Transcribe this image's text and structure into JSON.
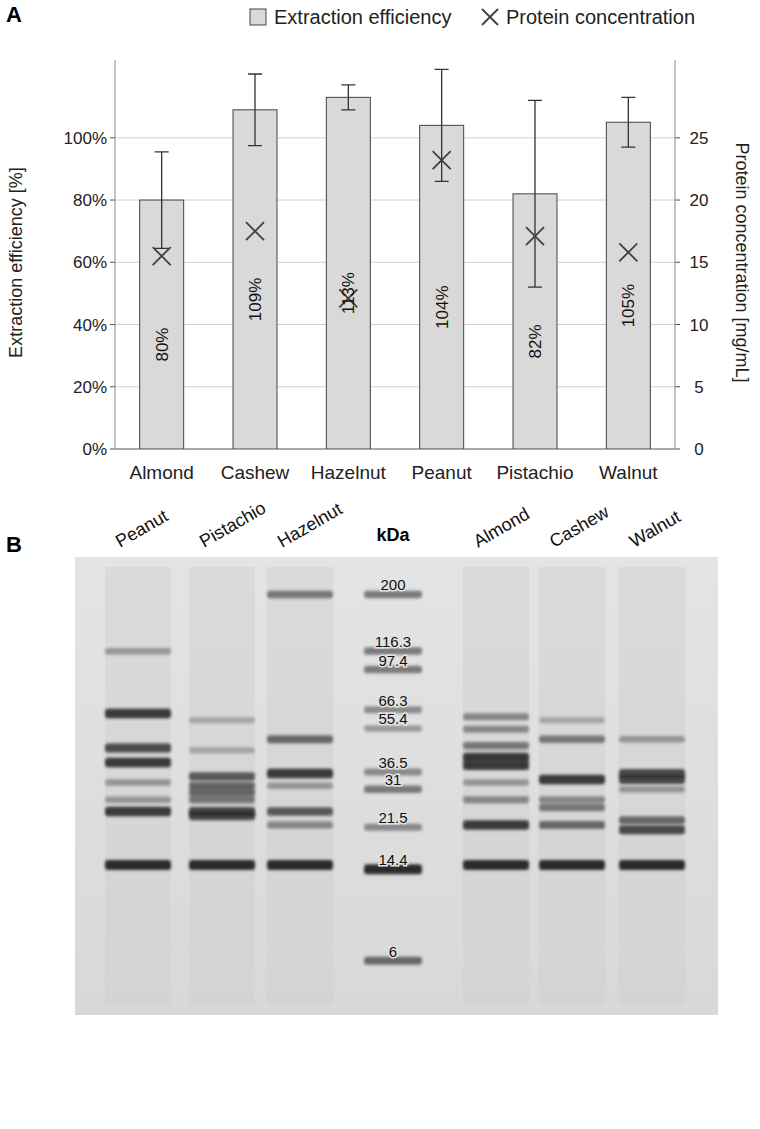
{
  "chart_data": [
    {
      "type": "bar",
      "panel": "A",
      "categories": [
        "Almond",
        "Cashew",
        "Hazelnut",
        "Peanut",
        "Pistachio",
        "Walnut"
      ],
      "ylabel": "Extraction efficiency [%]",
      "y2label": "Protein concentration [mg/mL]",
      "ylim": [
        0,
        125
      ],
      "yticks": [
        {
          "value": 0,
          "label": "0%"
        },
        {
          "value": 20,
          "label": "20%"
        },
        {
          "value": 40,
          "label": "40%"
        },
        {
          "value": 60,
          "label": "60%"
        },
        {
          "value": 80,
          "label": "80%"
        },
        {
          "value": 100,
          "label": "100%"
        }
      ],
      "y2lim": [
        0,
        31.25
      ],
      "y2ticks": [
        0,
        5,
        10,
        15,
        20,
        25
      ],
      "grid": true,
      "legend": "top",
      "data_labels": true,
      "series": [
        {
          "name": "Extraction efficiency",
          "type": "bar",
          "color": "#d9d9d9",
          "values": [
            80,
            109,
            113,
            104,
            82,
            105
          ],
          "value_labels": [
            "80%",
            "109%",
            "113%",
            "104%",
            "82%",
            "105%"
          ],
          "errors": [
            15.5,
            11.5,
            4,
            18,
            30,
            8
          ]
        },
        {
          "name": "Protein concentration",
          "type": "scatter",
          "marker": "x",
          "color": "#404040",
          "axis": "y2",
          "values": [
            15.5,
            17.5,
            12.1,
            23.2,
            17.1,
            15.8
          ]
        }
      ]
    },
    {
      "type": "gel",
      "panel": "B",
      "log": "y",
      "ylim": [
        4,
        260
      ],
      "lanes": [
        {
          "name": "Peanut",
          "kda": [
            116,
            64,
            46,
            40,
            33,
            28,
            25,
            15
          ],
          "intensity": [
            0.3,
            0.9,
            0.8,
            0.9,
            0.3,
            0.3,
            0.9,
            1
          ]
        },
        {
          "name": "Pistachio",
          "kda": [
            60,
            45,
            35,
            32,
            30,
            28,
            25,
            24,
            15
          ],
          "intensity": [
            0.2,
            0.2,
            0.7,
            0.6,
            0.6,
            0.5,
            0.8,
            0.8,
            1
          ]
        },
        {
          "name": "Hazelnut",
          "kda": [
            200,
            50,
            36,
            32,
            25,
            22,
            15
          ],
          "intensity": [
            0.5,
            0.6,
            0.9,
            0.3,
            0.7,
            0.4,
            1
          ]
        },
        {
          "name": "kDa",
          "ladder": true,
          "kda": [
            200,
            116.3,
            97.4,
            66.3,
            55.4,
            36.5,
            31,
            21.5,
            14.4,
            6
          ],
          "intensity": [
            0.5,
            0.5,
            0.5,
            0.4,
            0.3,
            0.4,
            0.5,
            0.4,
            1,
            0.6
          ]
        },
        {
          "name": "Almond",
          "kda": [
            62,
            55,
            47,
            42,
            39,
            33,
            28,
            22,
            15
          ],
          "intensity": [
            0.4,
            0.4,
            0.5,
            0.9,
            0.9,
            0.3,
            0.4,
            0.9,
            1
          ]
        },
        {
          "name": "Cashew",
          "kda": [
            60,
            50,
            34,
            28,
            26,
            22,
            15
          ],
          "intensity": [
            0.2,
            0.5,
            0.9,
            0.4,
            0.5,
            0.6,
            1
          ]
        },
        {
          "name": "Walnut",
          "kda": [
            50,
            36,
            34,
            31,
            23,
            21,
            15
          ],
          "intensity": [
            0.3,
            0.8,
            0.8,
            0.3,
            0.6,
            0.8,
            1
          ]
        }
      ]
    }
  ]
}
